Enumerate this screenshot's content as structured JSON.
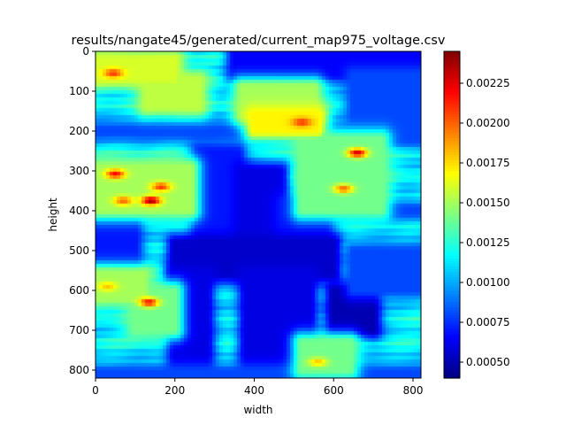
{
  "chart_data": {
    "type": "heatmap",
    "title": "results/nangate45/generated/current_map975_voltage.csv",
    "xlabel": "width",
    "ylabel": "height",
    "xlim": [
      0,
      820
    ],
    "ylim": [
      820,
      0
    ],
    "x_ticks": [
      0,
      200,
      400,
      600,
      800
    ],
    "y_ticks": [
      0,
      100,
      200,
      300,
      400,
      500,
      600,
      700,
      800
    ],
    "colormap": "jet",
    "colorbar": {
      "min": 0.0004,
      "max": 0.00245,
      "ticks": [
        0.0005,
        0.00075,
        0.001,
        0.00125,
        0.0015,
        0.00175,
        0.002,
        0.00225
      ],
      "tick_labels": [
        "0.00050",
        "0.00075",
        "0.00100",
        "0.00125",
        "0.00150",
        "0.00175",
        "0.00200",
        "0.00225"
      ]
    },
    "grid": false,
    "background_level": 0.00115,
    "low_regions": [
      {
        "x": [
          350,
          820
        ],
        "y": [
          0,
          60
        ],
        "value": 0.00065
      },
      {
        "x": [
          650,
          820
        ],
        "y": [
          60,
          220
        ],
        "value": 0.0008
      },
      {
        "x": [
          0,
          820
        ],
        "y": [
          196,
          204
        ],
        "value": 0.0008
      },
      {
        "x": [
          0,
          820
        ],
        "y": [
          396,
          404
        ],
        "value": 0.0008
      },
      {
        "x": [
          0,
          100
        ],
        "y": [
          400,
          520
        ],
        "value": 0.0007
      },
      {
        "x": [
          260,
          360
        ],
        "y": [
          250,
          500
        ],
        "value": 0.0007
      },
      {
        "x": [
          370,
          470
        ],
        "y": [
          300,
          520
        ],
        "value": 0.0006
      },
      {
        "x": [
          470,
          580
        ],
        "y": [
          380,
          470
        ],
        "value": 0.0007
      },
      {
        "x": [
          200,
          600
        ],
        "y": [
          480,
          560
        ],
        "value": 0.00055
      },
      {
        "x": [
          200,
          280
        ],
        "y": [
          560,
          810
        ],
        "value": 0.0006
      },
      {
        "x": [
          380,
          540
        ],
        "y": [
          560,
          810
        ],
        "value": 0.0006
      },
      {
        "x": [
          600,
          700
        ],
        "y": [
          600,
          700
        ],
        "value": 0.0005
      },
      {
        "x": [
          650,
          820
        ],
        "y": [
          500,
          600
        ],
        "value": 0.0008
      },
      {
        "x": [
          0,
          820
        ],
        "y": [
          804,
          820
        ],
        "value": 0.0008
      }
    ],
    "hot_regions": [
      {
        "x": [
          0,
          200
        ],
        "y": [
          20,
          70
        ],
        "value": 0.0016
      },
      {
        "x": [
          130,
          260
        ],
        "y": [
          70,
          140
        ],
        "value": 0.00155
      },
      {
        "x": [
          370,
          550
        ],
        "y": [
          90,
          160
        ],
        "value": 0.0015
      },
      {
        "x": [
          400,
          560
        ],
        "y": [
          160,
          200
        ],
        "value": 0.0017
      },
      {
        "x": [
          0,
          240
        ],
        "y": [
          290,
          400
        ],
        "value": 0.0015
      },
      {
        "x": [
          520,
          720
        ],
        "y": [
          220,
          400
        ],
        "value": 0.0014
      },
      {
        "x": [
          0,
          120
        ],
        "y": [
          560,
          620
        ],
        "value": 0.0015
      },
      {
        "x": [
          100,
          200
        ],
        "y": [
          600,
          700
        ],
        "value": 0.0014
      },
      {
        "x": [
          520,
          640
        ],
        "y": [
          730,
          800
        ],
        "value": 0.0014
      }
    ],
    "hotspots": [
      {
        "x": 45,
        "y": 55,
        "value": 0.0021
      },
      {
        "x": 520,
        "y": 178,
        "value": 0.0021
      },
      {
        "x": 660,
        "y": 255,
        "value": 0.0023
      },
      {
        "x": 50,
        "y": 308,
        "value": 0.0022
      },
      {
        "x": 165,
        "y": 340,
        "value": 0.0021
      },
      {
        "x": 140,
        "y": 375,
        "value": 0.0024
      },
      {
        "x": 70,
        "y": 375,
        "value": 0.002
      },
      {
        "x": 625,
        "y": 345,
        "value": 0.002
      },
      {
        "x": 135,
        "y": 630,
        "value": 0.0022
      },
      {
        "x": 30,
        "y": 590,
        "value": 0.0018
      },
      {
        "x": 560,
        "y": 780,
        "value": 0.0018
      }
    ]
  }
}
